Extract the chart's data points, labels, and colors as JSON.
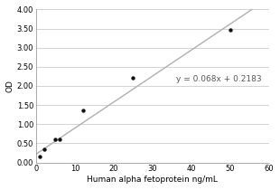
{
  "x_data": [
    1,
    2,
    5,
    6,
    12,
    25,
    50
  ],
  "y_data": [
    0.15,
    0.35,
    0.6,
    0.6,
    1.35,
    2.22,
    3.47
  ],
  "slope": 0.068,
  "intercept": 0.2183,
  "equation_text": "y = 0.068x + 0.2183",
  "equation_x": 36,
  "equation_y": 2.18,
  "xlabel": "Human alpha fetoprotein ng/mL",
  "ylabel": "OD",
  "xlim": [
    0,
    60
  ],
  "ylim": [
    0.0,
    4.0
  ],
  "xticks": [
    0,
    10,
    20,
    30,
    40,
    50,
    60
  ],
  "yticks": [
    0.0,
    0.5,
    1.0,
    1.5,
    2.0,
    2.5,
    3.0,
    3.5,
    4.0
  ],
  "ytick_labels": [
    "0.00",
    "0.50",
    "1.00",
    "1.50",
    "2.00",
    "2.50",
    "3.00",
    "3.50",
    "4.00"
  ],
  "line_color": "#b0b0b0",
  "point_color": "#111111",
  "background_color": "#ffffff",
  "plot_bg_color": "#ffffff",
  "grid_color": "#cccccc",
  "xlabel_fontsize": 6.5,
  "ylabel_fontsize": 6.5,
  "tick_fontsize": 6,
  "equation_fontsize": 6.5,
  "point_size": 10,
  "line_width": 1.0
}
